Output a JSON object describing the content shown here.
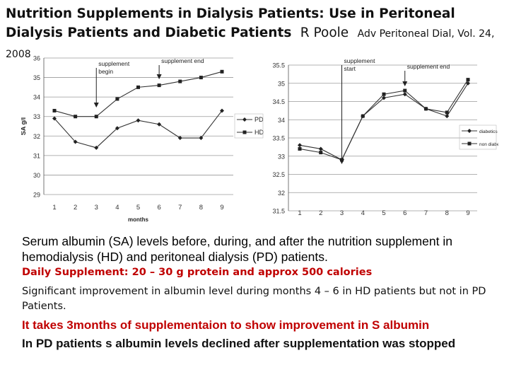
{
  "header": {
    "title": "Nutrition Supplements in Dialysis Patients: Use in Peritoneal Dialysis Patients and Diabetic Patients",
    "author": "R Poole",
    "citation": "Adv Peritoneal Dial, Vol. 24, 2008"
  },
  "chart_data": [
    {
      "type": "line",
      "categories": [
        "1",
        "2",
        "3",
        "4",
        "5",
        "6",
        "7",
        "8",
        "9"
      ],
      "series": [
        {
          "name": "PD",
          "values": [
            32.9,
            31.7,
            31.4,
            32.4,
            32.8,
            32.6,
            31.9,
            31.9,
            33.3
          ]
        },
        {
          "name": "HD",
          "values": [
            33.3,
            33.0,
            33.0,
            33.9,
            34.5,
            34.6,
            34.8,
            35.0,
            35.3
          ]
        }
      ],
      "xlabel": "months",
      "ylabel": "SA g/l",
      "ylim": [
        29,
        36
      ],
      "yticks": [
        "29",
        "30",
        "31",
        "32",
        "33",
        "34",
        "35",
        "36"
      ],
      "annotations": [
        {
          "label": "supplement begin",
          "at_month": 3
        },
        {
          "label": "supplement end",
          "at_month": 6
        }
      ],
      "legend": "right"
    },
    {
      "type": "line",
      "categories": [
        "1",
        "2",
        "3",
        "4",
        "5",
        "6",
        "7",
        "8",
        "9"
      ],
      "series": [
        {
          "name": "diabetics",
          "values": [
            33.3,
            33.2,
            32.9,
            34.1,
            34.6,
            34.7,
            34.3,
            34.1,
            35.0
          ]
        },
        {
          "name": "non diabetics",
          "values": [
            33.2,
            33.1,
            32.9,
            34.1,
            34.7,
            34.8,
            34.3,
            34.2,
            35.1
          ]
        }
      ],
      "ylim": [
        31.5,
        35.5
      ],
      "yticks": [
        "31.5",
        "32",
        "32.5",
        "33",
        "33.5",
        "34",
        "34.5",
        "35",
        "35.5"
      ],
      "annotations": [
        {
          "label": "supplement start",
          "at_month": 3
        },
        {
          "label": "supplement end",
          "at_month": 6
        }
      ],
      "legend": "right"
    }
  ],
  "body": {
    "caption": "Serum albumin (SA) levels before, during, and after the nutrition supplement in hemodialysis (HD) and peritoneal dialysis (PD) patients.",
    "daily": "Daily Supplement: 20 – 30 g protein and approx 500 calories",
    "significant": "Significant improvement in albumin level during months 4 – 6 in HD patients but not in PD Patients.",
    "takes": "It takes 3months of supplementaion to show improvement in S albumin",
    "decline": "In PD patients s albumin levels declined after supplementation was stopped"
  }
}
